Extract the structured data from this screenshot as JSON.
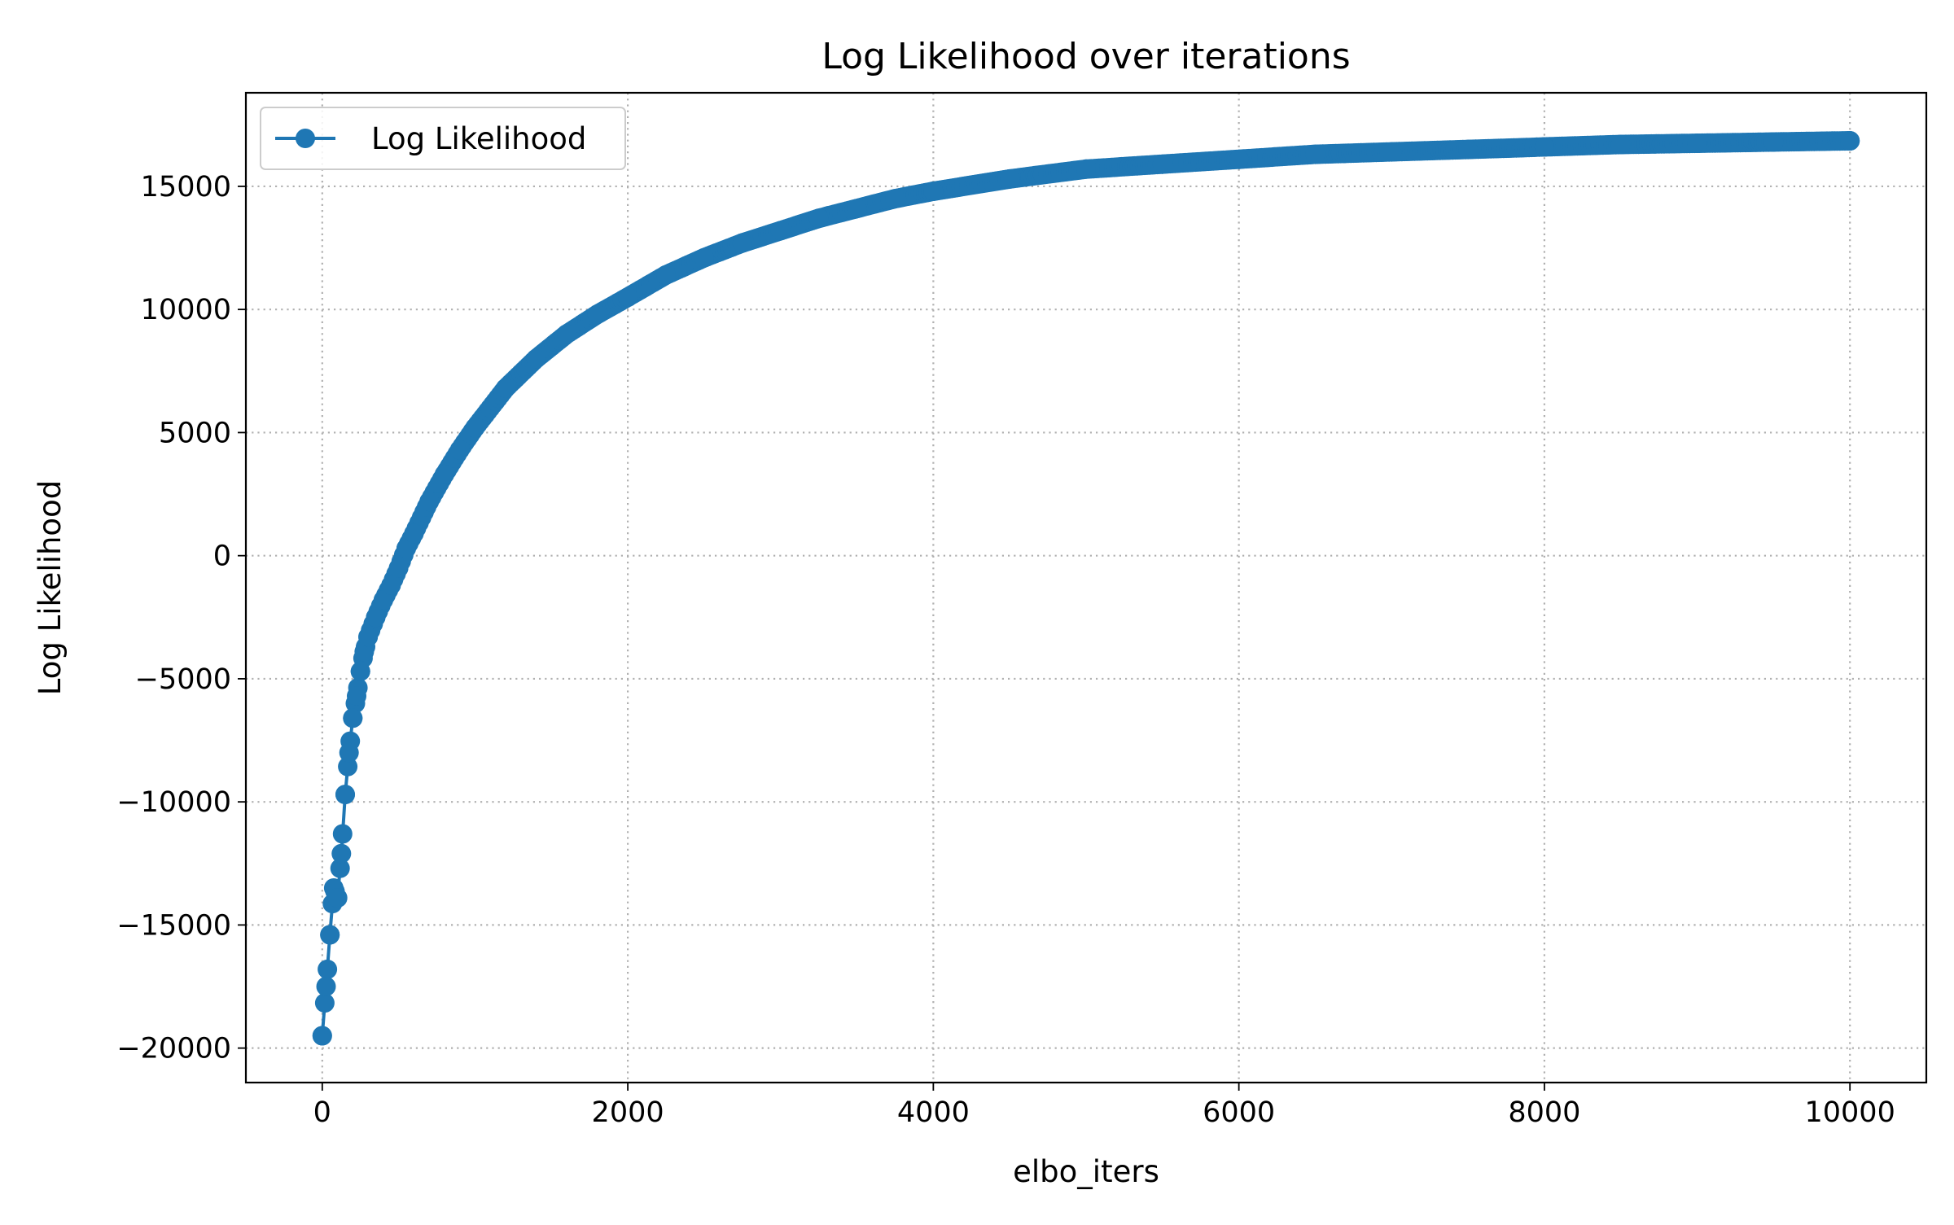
{
  "chart_data": {
    "type": "line",
    "title": "Log Likelihood over iterations",
    "xlabel": "elbo_iters",
    "ylabel": "Log Likelihood",
    "xlim": [
      -500,
      10500
    ],
    "ylim": [
      -21400,
      18800
    ],
    "xticks": [
      0,
      2000,
      4000,
      6000,
      8000,
      10000
    ],
    "xtick_labels": [
      "0",
      "2000",
      "4000",
      "6000",
      "8000",
      "10000"
    ],
    "yticks": [
      -20000,
      -15000,
      -10000,
      -5000,
      0,
      5000,
      10000,
      15000
    ],
    "ytick_labels": [
      "−20000",
      "−15000",
      "−10000",
      "−5000",
      "0",
      "5000",
      "10000",
      "15000"
    ],
    "grid": true,
    "legend_position": "upper left",
    "series": [
      {
        "name": "Log Likelihood",
        "color": "#1f77b4",
        "marker": "circle",
        "x": [
          0,
          25,
          50,
          75,
          100,
          125,
          150,
          175,
          200,
          225,
          250,
          275,
          300,
          350,
          400,
          450,
          500,
          550,
          600,
          700,
          800,
          900,
          1000,
          1200,
          1400,
          1600,
          1800,
          2000,
          2250,
          2500,
          2750,
          3000,
          3250,
          3500,
          3750,
          4000,
          4500,
          5000,
          5500,
          6000,
          6500,
          7000,
          7500,
          8000,
          8500,
          9000,
          9500,
          10000
        ],
        "y": [
          -19500,
          -17500,
          -15400,
          -13500,
          -13900,
          -12100,
          -9700,
          -8000,
          -6600,
          -5700,
          -4700,
          -3900,
          -3300,
          -2500,
          -1800,
          -1200,
          -500,
          300,
          900,
          2200,
          3300,
          4300,
          5200,
          6800,
          8000,
          9000,
          9800,
          10500,
          11400,
          12100,
          12700,
          13200,
          13700,
          14100,
          14500,
          14800,
          15300,
          15700,
          15900,
          16100,
          16300,
          16400,
          16500,
          16600,
          16700,
          16750,
          16800,
          16850
        ]
      }
    ]
  }
}
